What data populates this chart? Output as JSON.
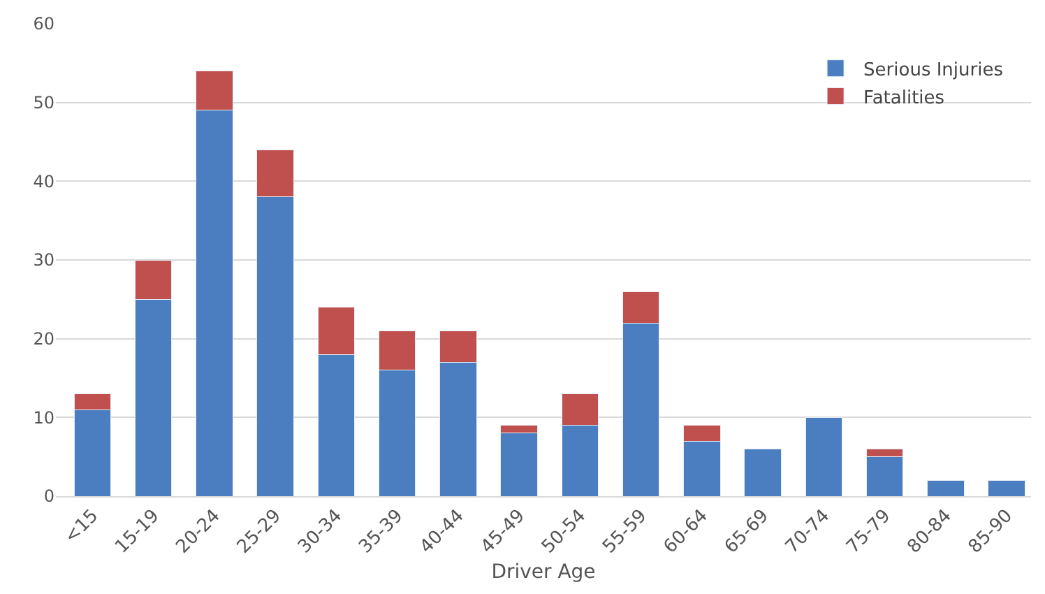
{
  "chart_data": {
    "type": "bar",
    "stacked": true,
    "xlabel": "Driver Age",
    "categories": [
      "<15",
      "15-19",
      "20-24",
      "25-29",
      "30-34",
      "35-39",
      "40-44",
      "45-49",
      "50-54",
      "55-59",
      "60-64",
      "65-69",
      "70-74",
      "75-79",
      "80-84",
      "85-90"
    ],
    "series": [
      {
        "name": "Serious Injuries",
        "color": "#4a7ec0",
        "values": [
          11,
          25,
          49,
          38,
          18,
          16,
          17,
          8,
          9,
          22,
          7,
          6,
          10,
          5,
          2,
          2
        ]
      },
      {
        "name": "Fatalities",
        "color": "#c0504d",
        "values": [
          2,
          5,
          5,
          6,
          6,
          5,
          4,
          1,
          4,
          4,
          2,
          null,
          null,
          1,
          null,
          null
        ]
      }
    ],
    "ylim": [
      0,
      60
    ],
    "yticks": [
      0,
      10,
      20,
      30,
      40,
      50,
      60
    ],
    "grid": "y",
    "legend": "top right"
  }
}
